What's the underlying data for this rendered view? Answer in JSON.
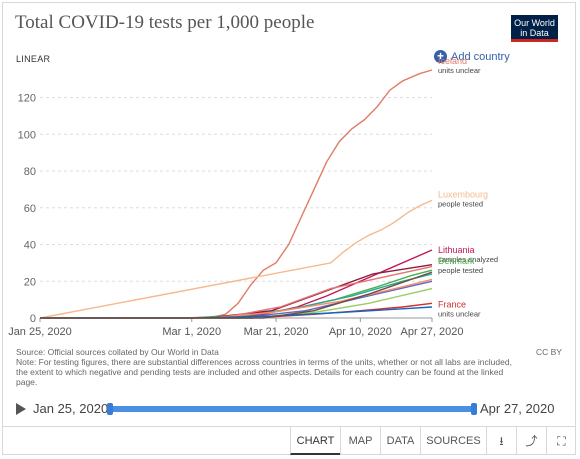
{
  "header": {
    "title": "Total COVID-19 tests per 1,000 people",
    "logo_line1": "Our World",
    "logo_line2": "in Data",
    "scale_label": "LINEAR",
    "add_country": "Add country"
  },
  "chart_data": {
    "type": "line",
    "title": "Total COVID-19 tests per 1,000 people",
    "xlabel": "",
    "ylabel": "",
    "ylim": [
      0,
      135
    ],
    "yticks": [
      0,
      20,
      40,
      60,
      80,
      100,
      120
    ],
    "x_range": [
      "2020-01-25",
      "2020-04-27"
    ],
    "xticks": [
      {
        "date": "2020-01-25",
        "label": "Jan 25, 2020"
      },
      {
        "date": "2020-03-01",
        "label": "Mar 1, 2020"
      },
      {
        "date": "2020-03-21",
        "label": "Mar 21, 2020"
      },
      {
        "date": "2020-04-10",
        "label": "Apr 10, 2020"
      },
      {
        "date": "2020-04-27",
        "label": "Apr 27, 2020"
      }
    ],
    "grid": true,
    "legend": "right",
    "series": [
      {
        "name": "Iceland",
        "note": "units unclear",
        "color": "#e07b65",
        "label": true,
        "points": [
          [
            "2020-02-28",
            0
          ],
          [
            "2020-03-06",
            0.5
          ],
          [
            "2020-03-09",
            2
          ],
          [
            "2020-03-12",
            8
          ],
          [
            "2020-03-15",
            18
          ],
          [
            "2020-03-18",
            26
          ],
          [
            "2020-03-21",
            30
          ],
          [
            "2020-03-24",
            40
          ],
          [
            "2020-03-27",
            55
          ],
          [
            "2020-03-30",
            70
          ],
          [
            "2020-04-02",
            85
          ],
          [
            "2020-04-05",
            96
          ],
          [
            "2020-04-08",
            103
          ],
          [
            "2020-04-11",
            108
          ],
          [
            "2020-04-14",
            115
          ],
          [
            "2020-04-17",
            124
          ],
          [
            "2020-04-20",
            129
          ],
          [
            "2020-04-24",
            133
          ],
          [
            "2020-04-27",
            135
          ]
        ]
      },
      {
        "name": "Luxembourg",
        "note": "people tested",
        "color": "#f5b98d",
        "label": true,
        "points": [
          [
            "2020-04-03",
            30
          ],
          [
            "2020-04-06",
            36
          ],
          [
            "2020-04-09",
            41
          ],
          [
            "2020-04-12",
            45
          ],
          [
            "2020-04-15",
            48
          ],
          [
            "2020-04-18",
            52
          ],
          [
            "2020-04-21",
            57
          ],
          [
            "2020-04-24",
            61
          ],
          [
            "2020-04-27",
            64
          ]
        ]
      },
      {
        "name": "Lithuania",
        "note": "samples analyzed",
        "color": "#c2185b",
        "label": true,
        "points": [
          [
            "2020-03-10",
            0
          ],
          [
            "2020-03-18",
            2
          ],
          [
            "2020-03-26",
            6
          ],
          [
            "2020-04-02",
            12
          ],
          [
            "2020-04-09",
            19
          ],
          [
            "2020-04-16",
            26
          ],
          [
            "2020-04-23",
            33
          ],
          [
            "2020-04-27",
            37
          ]
        ]
      },
      {
        "name": "Denmark",
        "note": "people tested",
        "color": "#4caf50",
        "label": true,
        "points": [
          [
            "2020-03-01",
            0
          ],
          [
            "2020-03-15",
            2
          ],
          [
            "2020-03-25",
            5
          ],
          [
            "2020-04-04",
            10
          ],
          [
            "2020-04-14",
            17
          ],
          [
            "2020-04-22",
            23
          ],
          [
            "2020-04-27",
            26
          ]
        ]
      },
      {
        "name": "France",
        "note": "units unclear",
        "color": "#d32f2f",
        "label": true,
        "points": [
          [
            "2020-03-15",
            0
          ],
          [
            "2020-03-30",
            2
          ],
          [
            "2020-04-10",
            4
          ],
          [
            "2020-04-20",
            6
          ],
          [
            "2020-04-27",
            8
          ]
        ]
      },
      {
        "name": "",
        "color": "#8d1c3c",
        "label": false,
        "points": [
          [
            "2020-03-05",
            0
          ],
          [
            "2020-03-20",
            4
          ],
          [
            "2020-04-01",
            14
          ],
          [
            "2020-04-13",
            24
          ],
          [
            "2020-04-27",
            29
          ]
        ]
      },
      {
        "name": "",
        "color": "#e57373",
        "label": false,
        "points": [
          [
            "2020-03-08",
            0
          ],
          [
            "2020-03-22",
            6
          ],
          [
            "2020-04-03",
            16
          ],
          [
            "2020-04-15",
            22
          ],
          [
            "2020-04-27",
            28
          ]
        ]
      },
      {
        "name": "",
        "color": "#26a69a",
        "label": false,
        "points": [
          [
            "2020-03-10",
            0
          ],
          [
            "2020-03-25",
            5
          ],
          [
            "2020-04-08",
            12
          ],
          [
            "2020-04-20",
            20
          ],
          [
            "2020-04-27",
            24
          ]
        ]
      },
      {
        "name": "",
        "color": "#5c6bc0",
        "label": false,
        "points": [
          [
            "2020-03-12",
            0
          ],
          [
            "2020-03-28",
            4
          ],
          [
            "2020-04-10",
            11
          ],
          [
            "2020-04-27",
            20
          ]
        ]
      },
      {
        "name": "",
        "color": "#9ccc65",
        "label": false,
        "points": [
          [
            "2020-03-15",
            0
          ],
          [
            "2020-03-30",
            3
          ],
          [
            "2020-04-12",
            8
          ],
          [
            "2020-04-27",
            16
          ]
        ]
      },
      {
        "name": "",
        "color": "#ff8a65",
        "label": false,
        "points": [
          [
            "2020-03-05",
            0
          ],
          [
            "2020-03-20",
            3
          ],
          [
            "2020-04-05",
            9
          ],
          [
            "2020-04-20",
            17
          ],
          [
            "2020-04-27",
            21
          ]
        ]
      },
      {
        "name": "",
        "color": "#1565c0",
        "label": false,
        "points": [
          [
            "2020-03-01",
            0
          ],
          [
            "2020-03-20",
            1
          ],
          [
            "2020-04-05",
            3
          ],
          [
            "2020-04-20",
            5
          ],
          [
            "2020-04-27",
            6
          ]
        ]
      },
      {
        "name": "",
        "color": "#6d4c41",
        "label": false,
        "points": [
          [
            "2020-03-18",
            0
          ],
          [
            "2020-03-30",
            4
          ],
          [
            "2020-04-12",
            13
          ],
          [
            "2020-04-27",
            25
          ]
        ]
      }
    ]
  },
  "footer": {
    "source": "Source: Official sources collated by Our World in Data",
    "note": "Note: For testing figures, there are substantial differences across countries in terms of the units, whether or not all labs are included, the extent to which negative and pending tests are included and other aspects. Details for each country can be found at the linked page.",
    "license": "CC BY"
  },
  "timeline": {
    "start_label": "Jan 25, 2020",
    "end_label": "Apr 27, 2020"
  },
  "tabs": {
    "chart": "CHART",
    "map": "MAP",
    "data": "DATA",
    "sources": "SOURCES",
    "download_icon": "⭳",
    "share_icon": "⤴",
    "fullscreen_icon": "⛶"
  }
}
